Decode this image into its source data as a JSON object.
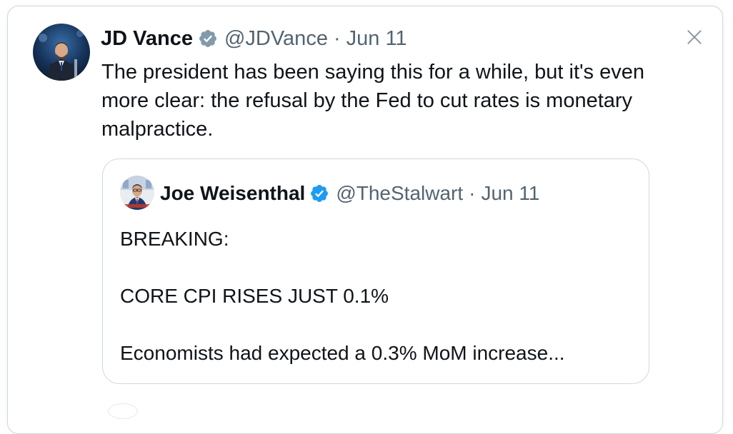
{
  "tweet": {
    "author_name": "JD Vance",
    "handle": "@JDVance",
    "separator": "·",
    "date": "Jun 11",
    "text": "The president has been saying this for a while, but it's even more clear: the refusal by the Fed to cut rates is monetary malpractice.",
    "verified_badge_color": "#829aab"
  },
  "quoted_tweet": {
    "author_name": "Joe Weisenthal",
    "handle": "@TheStalwart",
    "separator": "·",
    "date": "Jun 11",
    "lines": [
      "BREAKING:",
      "",
      "CORE CPI RISES JUST 0.1%",
      "",
      "Economists had expected a 0.3% MoM increase..."
    ],
    "verified_badge_color": "#1d9bf0"
  },
  "icons": {
    "close": "close-icon",
    "verified": "verified-badge-icon"
  },
  "colors": {
    "text": "#0f1419",
    "secondary": "#536471",
    "border": "#cfd9de"
  }
}
